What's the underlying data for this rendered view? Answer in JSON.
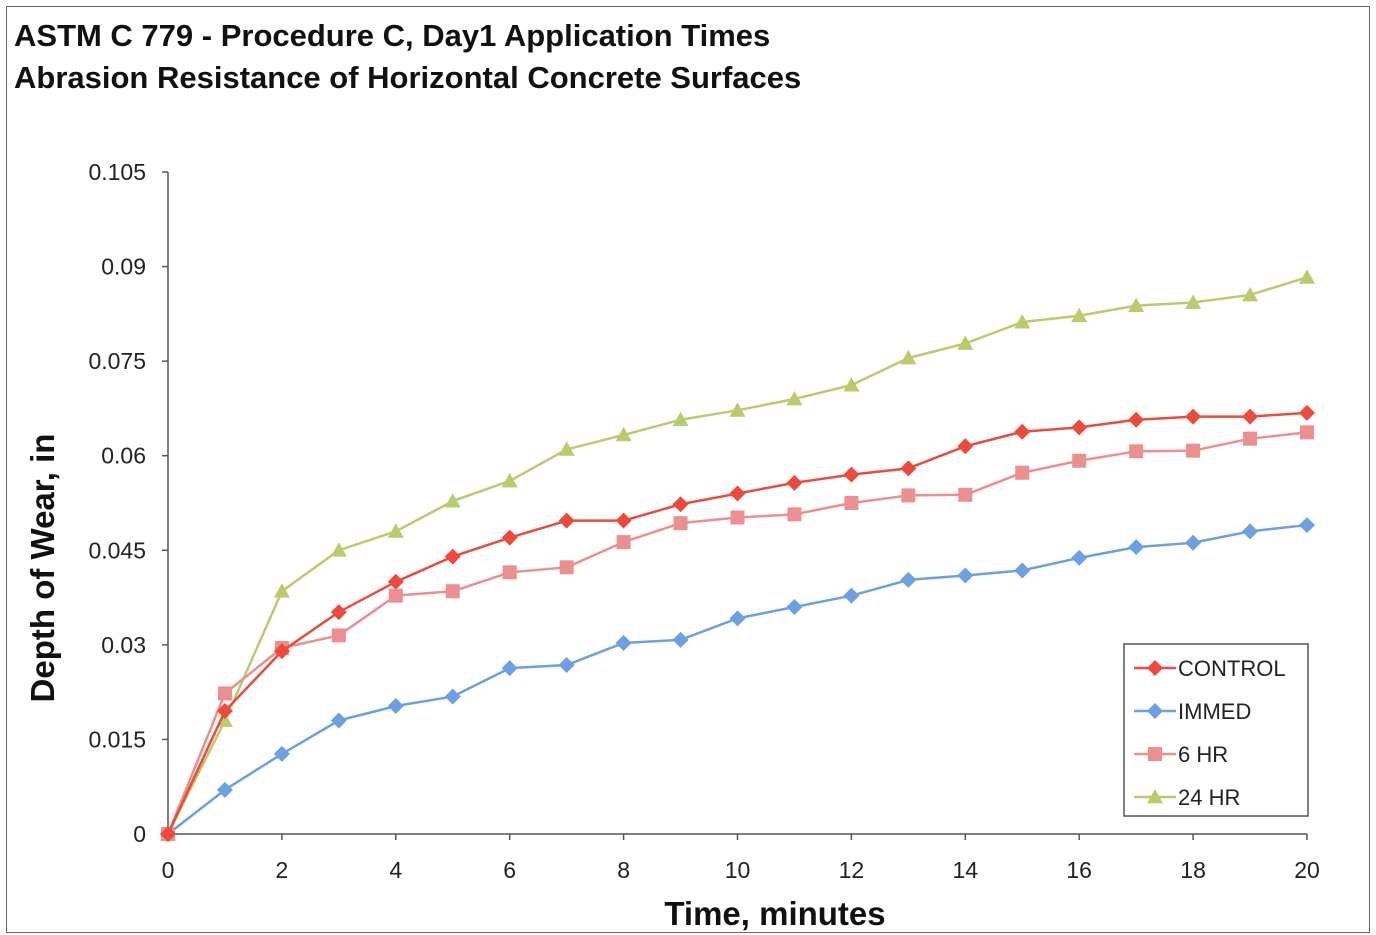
{
  "chart_data": {
    "type": "line",
    "title": "ASTM C 779 - Procedure C, Day1 Application Times",
    "subtitle": "Abrasion Resistance of Horizontal Concrete Surfaces",
    "xlabel": "Time, minutes",
    "ylabel": "Depth of Wear, in",
    "xlim": [
      0,
      20
    ],
    "ylim": [
      0,
      0.105
    ],
    "xticks": [
      "0",
      "2",
      "4",
      "6",
      "8",
      "10",
      "12",
      "14",
      "16",
      "18",
      "20"
    ],
    "yticks": [
      "0",
      "0.015",
      "0.03",
      "0.045",
      "0.06",
      "0.075",
      "0.09",
      "0.105"
    ],
    "grid": false,
    "legend_position": "bottom-right",
    "x": [
      0,
      1,
      2,
      3,
      4,
      5,
      6,
      7,
      8,
      9,
      10,
      11,
      12,
      13,
      14,
      15,
      16,
      17,
      18,
      19,
      20
    ],
    "series": [
      {
        "name": "CONTROL",
        "color": "#ee4a3c",
        "marker": "diamond",
        "values": [
          0,
          0.0195,
          0.029,
          0.0352,
          0.04,
          0.044,
          0.047,
          0.0497,
          0.0497,
          0.0523,
          0.054,
          0.0557,
          0.057,
          0.058,
          0.0615,
          0.0638,
          0.0645,
          0.0657,
          0.0662,
          0.0662,
          0.0668
        ]
      },
      {
        "name": "IMMED",
        "color": "#6d9fe3",
        "marker": "diamond",
        "values": [
          0,
          0.007,
          0.0127,
          0.018,
          0.0203,
          0.0218,
          0.0263,
          0.0268,
          0.0303,
          0.0308,
          0.0342,
          0.036,
          0.0378,
          0.0403,
          0.041,
          0.0418,
          0.0438,
          0.0455,
          0.0462,
          0.048,
          0.049
        ]
      },
      {
        "name": "6 HR",
        "color": "#ec8f8f",
        "marker": "square",
        "values": [
          0,
          0.0223,
          0.0295,
          0.0315,
          0.0378,
          0.0385,
          0.0415,
          0.0423,
          0.0463,
          0.0493,
          0.0502,
          0.0507,
          0.0525,
          0.0537,
          0.0538,
          0.0573,
          0.0592,
          0.0607,
          0.0608,
          0.0627,
          0.0637
        ]
      },
      {
        "name": "24 HR",
        "color": "#b8cc6c",
        "marker": "triangle",
        "values": [
          0,
          0.018,
          0.0385,
          0.045,
          0.048,
          0.0528,
          0.056,
          0.061,
          0.0633,
          0.0657,
          0.0672,
          0.069,
          0.0712,
          0.0755,
          0.0778,
          0.0812,
          0.0822,
          0.0838,
          0.0843,
          0.0855,
          0.0883
        ]
      }
    ]
  }
}
